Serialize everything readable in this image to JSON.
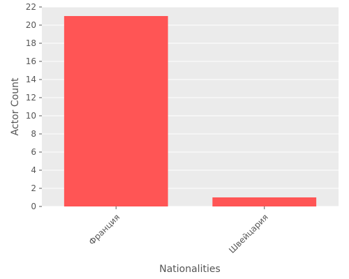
{
  "chart_data": {
    "type": "bar",
    "categories": [
      "Франция",
      "Швейцария"
    ],
    "values": [
      21,
      1
    ],
    "title": "",
    "xlabel": "Nationalities",
    "ylabel": "Actor Count",
    "ylim": [
      0,
      22
    ],
    "yticks": [
      0,
      2,
      4,
      6,
      8,
      10,
      12,
      14,
      16,
      18,
      20,
      22
    ],
    "grid": true,
    "legend": "none",
    "colors": {
      "bar": "#ff5555",
      "plot_background": "#ebebeb",
      "grid": "#ffffff",
      "text": "#555555"
    }
  }
}
